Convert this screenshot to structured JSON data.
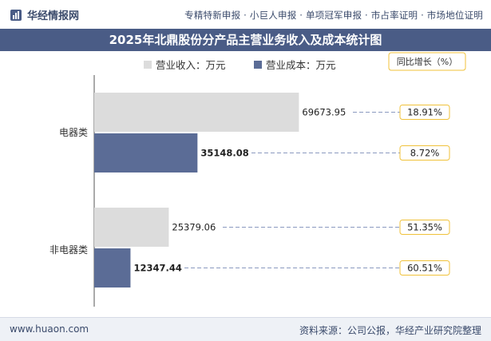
{
  "header": {
    "brand": "华经情报网",
    "tagline": "专精特新申报 · 小巨人申报 · 单项冠军申报 · 市占率证明 · 市场地位证明"
  },
  "footer": {
    "website": "www.huaon.com",
    "source": "资料来源：公司公报，华经产业研究院整理"
  },
  "colors": {
    "revenue": "#dcdcdc",
    "cost": "#5b6c96",
    "growth_border": "#f0c23a",
    "title_bg": "#4a5c86"
  },
  "chart_data": {
    "type": "bar",
    "orientation": "horizontal",
    "title": "2025年北鼎股份分产品主营业务收入及成本统计图",
    "categories": [
      "电器类",
      "非电器类"
    ],
    "series": [
      {
        "name": "营业收入：万元",
        "values": [
          69673.95,
          25379.06
        ],
        "value_labels": [
          "69673.95",
          "25379.06"
        ],
        "growth": [
          "18.91%",
          "51.35%"
        ]
      },
      {
        "name": "营业成本：万元",
        "values": [
          35148.08,
          12347.44
        ],
        "value_labels": [
          "35148.08",
          "12347.44"
        ],
        "growth": [
          "8.72%",
          "60.51%"
        ]
      }
    ],
    "growth_label": "同比增长（%）",
    "xlim": [
      0,
      100000
    ],
    "legend_position": "top",
    "grid": false
  }
}
